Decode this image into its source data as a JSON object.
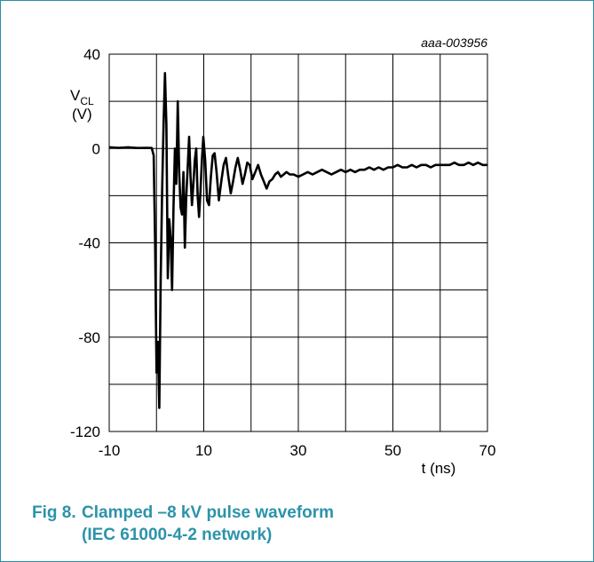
{
  "chart_data": {
    "type": "line",
    "reference": "aaa-003956",
    "ylabel_main": "V",
    "ylabel_sub": "CL",
    "ylabel_unit": "(V)",
    "xlabel": "t (ns)",
    "xlim": [
      -10,
      70
    ],
    "ylim": [
      -120,
      40
    ],
    "xticks": [
      -10,
      10,
      30,
      50,
      70
    ],
    "yticks": [
      40,
      0,
      -40,
      -80,
      -120
    ],
    "grid": true,
    "series": [
      {
        "x": [
          -10,
          -8,
          -6,
          -4,
          -2,
          -1,
          -0.6,
          -0.3,
          0,
          0.3,
          0.6,
          0.9,
          1.2,
          1.5,
          1.8,
          2.1,
          2.4,
          2.7,
          3.0,
          3.3,
          3.6,
          3.9,
          4.2,
          4.5,
          4.8,
          5.1,
          5.4,
          5.7,
          6.0,
          6.3,
          6.6,
          6.9,
          7.2,
          7.5,
          7.8,
          8.1,
          8.4,
          8.7,
          9.0,
          9.3,
          9.6,
          9.9,
          10.3,
          10.7,
          11.1,
          11.5,
          11.9,
          12.3,
          12.7,
          13.2,
          13.7,
          14.2,
          14.7,
          15.2,
          15.7,
          16.2,
          16.7,
          17.2,
          17.7,
          18.2,
          18.7,
          19.2,
          19.7,
          20.3,
          20.9,
          21.5,
          22.1,
          22.7,
          23.3,
          23.9,
          24.5,
          25.1,
          25.7,
          26.3,
          26.9,
          27.5,
          28.2,
          29,
          30,
          31,
          32,
          33,
          34,
          35,
          36,
          37,
          38,
          39,
          40,
          41,
          42,
          43,
          44,
          45,
          46,
          47,
          48,
          49,
          50,
          51,
          52,
          53,
          54,
          55,
          56,
          57,
          58,
          59,
          60,
          61,
          62,
          63,
          64,
          65,
          66,
          67,
          68,
          69,
          70
        ],
        "values": [
          0.5,
          0.3,
          0.5,
          0.2,
          0.3,
          0.2,
          -3,
          -40,
          -95,
          -82,
          -110,
          -55,
          -18,
          10,
          32,
          10,
          -55,
          -30,
          -38,
          -60,
          -25,
          0,
          -15,
          20,
          -10,
          -25,
          -28,
          -10,
          -42,
          -20,
          -8,
          5,
          -12,
          -24,
          -15,
          -5,
          0,
          -20,
          -29,
          -18,
          -5,
          5,
          -5,
          -22,
          -24,
          -12,
          -3,
          -2,
          -10,
          -22,
          -14,
          -7,
          -4,
          -12,
          -19,
          -14,
          -8,
          -4,
          -9,
          -15,
          -11,
          -6,
          -7,
          -13,
          -10,
          -7,
          -11,
          -14,
          -17,
          -14,
          -13,
          -11,
          -10,
          -12,
          -11,
          -10,
          -11,
          -11,
          -12,
          -11,
          -10,
          -11,
          -10,
          -9,
          -10,
          -11,
          -10,
          -9,
          -10,
          -9,
          -10,
          -9,
          -9,
          -8,
          -9,
          -8,
          -9,
          -8,
          -8,
          -7,
          -8,
          -8,
          -7,
          -8,
          -7,
          -7,
          -8,
          -7,
          -7,
          -7,
          -7,
          -6,
          -7,
          -7,
          -6,
          -7,
          -6,
          -7,
          -7
        ]
      }
    ]
  },
  "caption": {
    "number": "Fig 8.",
    "line1": "Clamped –8 kV pulse waveform",
    "line2": "(IEC 61000-4-2 network)"
  }
}
